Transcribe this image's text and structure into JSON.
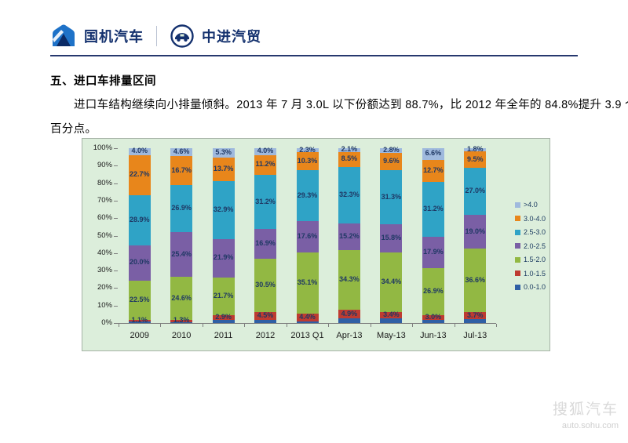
{
  "header": {
    "brand1": "国机汽车",
    "brand2": "中进汽贸",
    "icons": {
      "brand1_logo": "mountain-shield-logo",
      "brand2_logo": "car-in-circle-logo"
    }
  },
  "section": {
    "heading": "五、进口车排量区间",
    "paragraph_line1": "进口车结构继续向小排量倾斜。2013 年 7 月 3.0L 以下份额达到 88.7%，比 2012 年全年的 84.8%提升 3.9 个",
    "paragraph_line2": "百分点。"
  },
  "chart_data": {
    "type": "bar",
    "stacked": true,
    "grid": false,
    "background": "#dceedb",
    "legend_position": "right",
    "categories": [
      "2009",
      "2010",
      "2011",
      "2012",
      "2013 Q1",
      "Apr-13",
      "May-13",
      "Jun-13",
      "Jul-13"
    ],
    "series": [
      {
        "name": "0.0-1.0",
        "color": "#2f5fa5",
        "labeled": false,
        "values": [
          0.8,
          0.5,
          1.6,
          1.7,
          1.0,
          2.7,
          2.7,
          1.7,
          2.4
        ]
      },
      {
        "name": "1.0-1.5",
        "color": "#be3b31",
        "values": [
          1.1,
          1.3,
          2.9,
          4.5,
          4.4,
          4.9,
          3.4,
          3.0,
          3.7
        ]
      },
      {
        "name": "1.5-2.0",
        "color": "#92b843",
        "values": [
          22.5,
          24.6,
          21.7,
          30.5,
          35.1,
          34.3,
          34.4,
          26.9,
          36.6
        ]
      },
      {
        "name": "2.0-2.5",
        "color": "#7a5fa5",
        "values": [
          20.0,
          25.4,
          21.9,
          16.9,
          17.6,
          15.2,
          15.8,
          17.9,
          19.0
        ]
      },
      {
        "name": "2.5-3.0",
        "color": "#2fa3c6",
        "values": [
          28.9,
          26.9,
          32.9,
          31.2,
          29.3,
          32.3,
          31.3,
          31.2,
          27.0
        ]
      },
      {
        "name": "3.0-4.0",
        "color": "#e8861b",
        "values": [
          22.7,
          16.7,
          13.7,
          11.2,
          10.3,
          8.5,
          9.6,
          12.7,
          9.5
        ]
      },
      {
        "name": ">4.0",
        "color": "#9fb9dd",
        "values": [
          4.0,
          4.6,
          5.3,
          4.0,
          2.3,
          2.1,
          2.8,
          6.6,
          1.8
        ]
      }
    ],
    "legend": [
      ">4.0",
      "3.0-4.0",
      "2.5-3.0",
      "2.0-2.5",
      "1.5-2.0",
      "1.0-1.5",
      "0.0-1.0"
    ],
    "ylabel": "",
    "xlabel": "",
    "ylim": [
      0,
      100
    ],
    "y_tick_step": 10,
    "y_tick_suffix": "%"
  },
  "watermark": {
    "title": "搜狐汽车",
    "url": "auto.sohu.com"
  }
}
